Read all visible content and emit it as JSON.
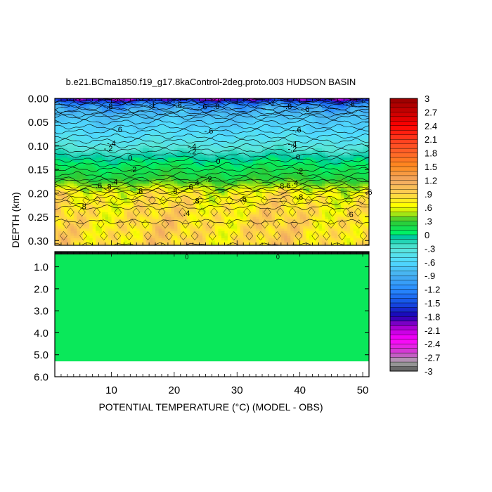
{
  "chart_data": {
    "type": "heatmap",
    "title": "b.e21.BCma1850.f19_g17.8kaControl-2deg.proto.003 HUDSON BASIN",
    "xlabel": "POTENTIAL TEMPERATURE (°C) (MODEL - OBS)",
    "ylabel": "DEPTH (km)",
    "xlim": [
      1,
      51
    ],
    "x_ticks": [
      "10",
      "20",
      "30",
      "40",
      "50"
    ],
    "upper_panel": {
      "ylim": [
        0.0,
        0.31
      ],
      "y_ticks": [
        "0.00",
        "0.05",
        "0.10",
        "0.15",
        "0.20",
        "0.25",
        "0.30"
      ],
      "profile": [
        {
          "depth": 0.0,
          "value": -2.0
        },
        {
          "depth": 0.01,
          "value": -1.3
        },
        {
          "depth": 0.02,
          "value": -1.0
        },
        {
          "depth": 0.035,
          "value": -0.8
        },
        {
          "depth": 0.05,
          "value": -0.7
        },
        {
          "depth": 0.07,
          "value": -0.6
        },
        {
          "depth": 0.09,
          "value": -0.45
        },
        {
          "depth": 0.11,
          "value": -0.25
        },
        {
          "depth": 0.13,
          "value": 0.0
        },
        {
          "depth": 0.15,
          "value": 0.15
        },
        {
          "depth": 0.17,
          "value": 0.25
        },
        {
          "depth": 0.185,
          "value": 0.45
        },
        {
          "depth": 0.2,
          "value": 0.7
        },
        {
          "depth": 0.23,
          "value": 0.8
        },
        {
          "depth": 0.26,
          "value": 0.85
        },
        {
          "depth": 0.31,
          "value": 0.85
        }
      ],
      "contour_labels": [
        {
          "x": 9.5,
          "depth": 0.016,
          "text": "-.8"
        },
        {
          "x": 16.5,
          "depth": 0.013,
          "text": "-1"
        },
        {
          "x": 20.5,
          "depth": 0.013,
          "text": "-.8"
        },
        {
          "x": 24.5,
          "depth": 0.017,
          "text": "-.6"
        },
        {
          "x": 26.5,
          "depth": 0.016,
          "text": "-.8"
        },
        {
          "x": 35.5,
          "depth": 0.01,
          "text": "-1"
        },
        {
          "x": 38.0,
          "depth": 0.016,
          "text": "-.8"
        },
        {
          "x": 40.8,
          "depth": 0.022,
          "text": "-.6"
        },
        {
          "x": 48.0,
          "depth": 0.012,
          "text": "-.6"
        },
        {
          "x": 11.0,
          "depth": 0.065,
          "text": "-.6"
        },
        {
          "x": 25.5,
          "depth": 0.068,
          "text": "-.6"
        },
        {
          "x": 39.5,
          "depth": 0.066,
          "text": "-.6"
        },
        {
          "x": 10.0,
          "depth": 0.094,
          "text": "-.4"
        },
        {
          "x": 9.5,
          "depth": 0.105,
          "text": "-.2"
        },
        {
          "x": 22.8,
          "depth": 0.101,
          "text": "-.4"
        },
        {
          "x": 22.8,
          "depth": 0.112,
          "text": "-.2"
        },
        {
          "x": 38.8,
          "depth": 0.096,
          "text": "-.4"
        },
        {
          "x": 38.8,
          "depth": 0.106,
          "text": "-.2"
        },
        {
          "x": 13.0,
          "depth": 0.125,
          "text": "0"
        },
        {
          "x": 27.0,
          "depth": 0.132,
          "text": "0"
        },
        {
          "x": 39.7,
          "depth": 0.123,
          "text": "0"
        },
        {
          "x": 13.5,
          "depth": 0.15,
          "text": ".2"
        },
        {
          "x": 40.0,
          "depth": 0.153,
          "text": ".2"
        },
        {
          "x": 25.5,
          "depth": 0.17,
          "text": ".2"
        },
        {
          "x": 23.5,
          "depth": 0.178,
          "text": ".4"
        },
        {
          "x": 10.5,
          "depth": 0.176,
          "text": ".4"
        },
        {
          "x": 8.0,
          "depth": 0.183,
          "text": ".6"
        },
        {
          "x": 9.5,
          "depth": 0.186,
          "text": ".8"
        },
        {
          "x": 22.5,
          "depth": 0.186,
          "text": ".6"
        },
        {
          "x": 37.0,
          "depth": 0.185,
          "text": ".8"
        },
        {
          "x": 38.0,
          "depth": 0.183,
          "text": ".6"
        },
        {
          "x": 39.2,
          "depth": 0.178,
          "text": ".4"
        },
        {
          "x": 14.5,
          "depth": 0.195,
          "text": ".8"
        },
        {
          "x": 20.0,
          "depth": 0.196,
          "text": ".8"
        },
        {
          "x": 31.0,
          "depth": 0.212,
          "text": ".6"
        },
        {
          "x": 23.5,
          "depth": 0.216,
          "text": ".8"
        },
        {
          "x": 40.0,
          "depth": 0.208,
          "text": ".8"
        },
        {
          "x": 5.5,
          "depth": 0.228,
          "text": ".8"
        },
        {
          "x": 22.0,
          "depth": 0.242,
          "text": ".4"
        },
        {
          "x": 48.0,
          "depth": 0.245,
          "text": ".6"
        },
        {
          "x": 51.0,
          "depth": 0.197,
          "text": ".6"
        }
      ]
    },
    "lower_panel": {
      "ylim": [
        0.31,
        6.0
      ],
      "y_ticks": [
        "1.0",
        "2.0",
        "3.0",
        "4.0",
        "5.0",
        "6.0"
      ],
      "data_bottom_depth": 5.3,
      "uniform_value": 0.1,
      "contour_labels": [
        {
          "x": 22.0,
          "depth": 0.35,
          "text": "0"
        },
        {
          "x": 36.5,
          "depth": 0.35,
          "text": "0"
        }
      ]
    },
    "colorbar": {
      "range": [
        -3,
        3
      ],
      "step": 0.1,
      "tick_labels": [
        "3",
        "2.7",
        "2.4",
        "2.1",
        "1.8",
        "1.5",
        "1.2",
        ".9",
        ".6",
        ".3",
        "0",
        "-.3",
        "-.6",
        "-.9",
        "-1.2",
        "-1.5",
        "-1.8",
        "-2.1",
        "-2.4",
        "-2.7",
        "-3"
      ],
      "palette": [
        {
          "v": -3.0,
          "color": "#555555"
        },
        {
          "v": -2.8,
          "color": "#aaaaaa"
        },
        {
          "v": -2.6,
          "color": "#cc44cc"
        },
        {
          "v": -2.3,
          "color": "#ff00ff"
        },
        {
          "v": -2.0,
          "color": "#9900cc"
        },
        {
          "v": -1.8,
          "color": "#1a00b3"
        },
        {
          "v": -1.5,
          "color": "#1450e6"
        },
        {
          "v": -1.2,
          "color": "#288cff"
        },
        {
          "v": -0.9,
          "color": "#46aff0"
        },
        {
          "v": -0.6,
          "color": "#50dcff"
        },
        {
          "v": -0.3,
          "color": "#5ae6d8"
        },
        {
          "v": -0.05,
          "color": "#00c9a0"
        },
        {
          "v": 0.05,
          "color": "#00f064"
        },
        {
          "v": 0.3,
          "color": "#32c832"
        },
        {
          "v": 0.5,
          "color": "#c8f00a"
        },
        {
          "v": 0.65,
          "color": "#ffff00"
        },
        {
          "v": 0.9,
          "color": "#ffd24d"
        },
        {
          "v": 1.2,
          "color": "#f0a864"
        },
        {
          "v": 1.5,
          "color": "#ff8c1e"
        },
        {
          "v": 1.8,
          "color": "#ff6428"
        },
        {
          "v": 2.1,
          "color": "#ff3c1e"
        },
        {
          "v": 2.4,
          "color": "#ff0000"
        },
        {
          "v": 2.7,
          "color": "#c80000"
        },
        {
          "v": 3.0,
          "color": "#960000"
        }
      ]
    }
  }
}
